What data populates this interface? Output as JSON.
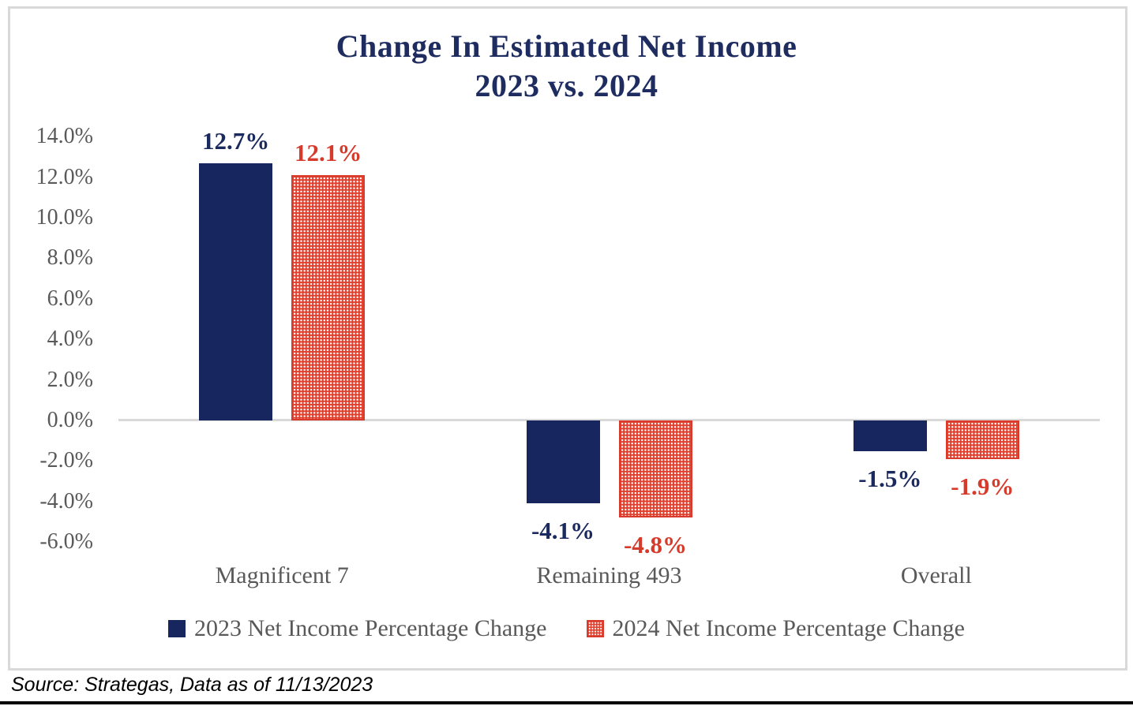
{
  "chart_data": {
    "type": "bar",
    "title": "Change In Estimated Net Income",
    "subtitle": "2023 vs. 2024",
    "categories": [
      "Magnificent 7",
      "Remaining 493",
      "Overall"
    ],
    "series": [
      {
        "name": "2023 Net Income Percentage Change",
        "values": [
          12.7,
          -4.1,
          -1.5
        ],
        "labels": [
          "12.7%",
          "-4.1%",
          "-1.5%"
        ],
        "color": "#17265E",
        "pattern": "solid"
      },
      {
        "name": "2024 Net Income Percentage Change",
        "values": [
          12.1,
          -4.8,
          -1.9
        ],
        "labels": [
          "12.1%",
          "-4.8%",
          "-1.9%"
        ],
        "color": "#D93A2B",
        "pattern": "white-dot-grid-on-red"
      }
    ],
    "y_axis": {
      "ticks": [
        "14.0%",
        "12.0%",
        "10.0%",
        "8.0%",
        "6.0%",
        "4.0%",
        "2.0%",
        "0.0%",
        "-2.0%",
        "-4.0%",
        "-6.0%"
      ],
      "min": -6.0,
      "max": 14.0,
      "step": 2.0
    },
    "grid": "zero-line-only",
    "legend_position": "bottom",
    "colors": {
      "title": "#1E2C60",
      "series_2023": "#17265E",
      "series_2024": "#D93A2B",
      "axis_text": "#595959",
      "gridline": "#D9D9D9"
    },
    "source": "Source: Strategas, Data as of 11/13/2023"
  }
}
